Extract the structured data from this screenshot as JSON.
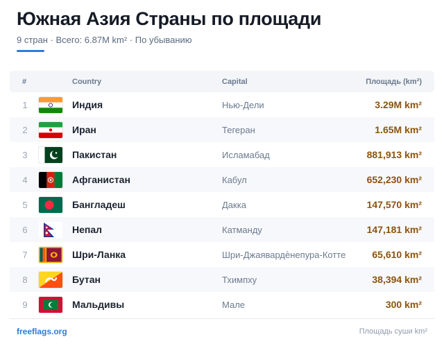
{
  "header": {
    "title": "Южная Азия Страны по площади",
    "subtitle": "9 стран · Всего: 6.87M km² · По убыванию",
    "accent_color": "#2e7bd6"
  },
  "table": {
    "columns": {
      "num": "#",
      "country": "Country",
      "capital": "Capital",
      "area": "Площадь (km²)"
    },
    "rows": [
      {
        "num": "1",
        "country": "Индия",
        "capital": "Нью-Дели",
        "area": "3.29M km²",
        "flag": "india-flag-icon"
      },
      {
        "num": "2",
        "country": "Иран",
        "capital": "Тегеран",
        "area": "1.65M km²",
        "flag": "iran-flag-icon"
      },
      {
        "num": "3",
        "country": "Пакистан",
        "capital": "Исламабад",
        "area": "881,913 km²",
        "flag": "pakistan-flag-icon"
      },
      {
        "num": "4",
        "country": "Афганистан",
        "capital": "Кабул",
        "area": "652,230 km²",
        "flag": "afghanistan-flag-icon"
      },
      {
        "num": "5",
        "country": "Бангладеш",
        "capital": "Дакка",
        "area": "147,570 km²",
        "flag": "bangladesh-flag-icon"
      },
      {
        "num": "6",
        "country": "Непал",
        "capital": "Катманду",
        "area": "147,181 km²",
        "flag": "nepal-flag-icon"
      },
      {
        "num": "7",
        "country": "Шри-Ланка",
        "capital": "Шри-Джаявардѐнепура-Котте",
        "area": "65,610 km²",
        "flag": "sri-lanka-flag-icon"
      },
      {
        "num": "8",
        "country": "Бутан",
        "capital": "Тхимпху",
        "area": "38,394 km²",
        "flag": "bhutan-flag-icon"
      },
      {
        "num": "9",
        "country": "Мальдивы",
        "capital": "Мале",
        "area": "300 km²",
        "flag": "maldives-flag-icon"
      }
    ]
  },
  "footer": {
    "source": "freeflags.org",
    "note": "Площадь суши km²"
  },
  "colors": {
    "area_text": "#8a5411",
    "row_alt": "#f7f8fb",
    "header_bg": "#f3f5f8"
  }
}
